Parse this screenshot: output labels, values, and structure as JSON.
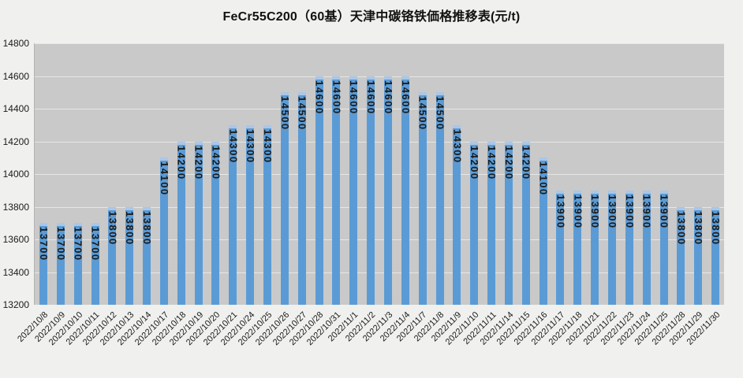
{
  "title": "FeCr55C200（60基）天津中碳铬铁価格推移表(元/t)",
  "colors": {
    "page_bg": "#f0f0ee",
    "plot_bg": "#c9c9c9",
    "bar": "#5b9bd5",
    "bar_cap": "#a9c7e8",
    "gridline": "#e6e6e4",
    "axis_text": "#1a1a1a",
    "data_label": "#1b1b1b"
  },
  "chart_data": {
    "type": "bar",
    "title": "FeCr55C200（60基）天津中碳铬铁価格推移表(元/t)",
    "xlabel": "",
    "ylabel": "",
    "ylim": [
      13200,
      14800
    ],
    "yticks": [
      13200,
      13400,
      13600,
      13800,
      14000,
      14200,
      14400,
      14600,
      14800
    ],
    "grid": true,
    "legend": false,
    "data_labels": "inside-end-vertical",
    "x_tick_rotation": 45,
    "categories": [
      "2022/10/8",
      "2022/10/9",
      "2022/10/10",
      "2022/10/11",
      "2022/10/12",
      "2022/10/13",
      "2022/10/14",
      "2022/10/17",
      "2022/10/18",
      "2022/10/19",
      "2022/10/20",
      "2022/10/21",
      "2022/10/24",
      "2022/10/25",
      "2022/10/26",
      "2022/10/27",
      "2022/10/28",
      "2022/10/31",
      "2022/11/1",
      "2022/11/2",
      "2022/11/3",
      "2022/11/4",
      "2022/11/7",
      "2022/11/8",
      "2022/11/9",
      "2022/11/10",
      "2022/11/11",
      "2022/11/14",
      "2022/11/15",
      "2022/11/16",
      "2022/11/17",
      "2022/11/18",
      "2022/11/21",
      "2022/11/22",
      "2022/11/23",
      "2022/11/24",
      "2022/11/25",
      "2022/11/28",
      "2022/11/29",
      "2022/11/30"
    ],
    "values": [
      13700,
      13700,
      13700,
      13700,
      13800,
      13800,
      13800,
      14100,
      14200,
      14200,
      14200,
      14300,
      14300,
      14300,
      14500,
      14500,
      14600,
      14600,
      14600,
      14600,
      14600,
      14600,
      14500,
      14500,
      14300,
      14200,
      14200,
      14200,
      14200,
      14100,
      13900,
      13900,
      13900,
      13900,
      13900,
      13900,
      13900,
      13800,
      13800,
      13800
    ]
  }
}
